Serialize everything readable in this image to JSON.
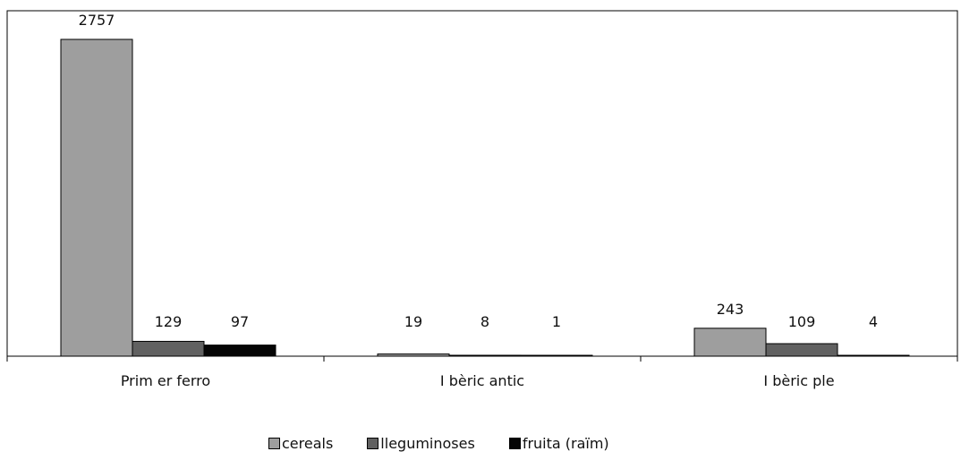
{
  "chart_data": {
    "type": "bar",
    "categories": [
      "Prim er ferro",
      "I bèric antic",
      "I bèric ple"
    ],
    "series": [
      {
        "name": "cereals",
        "values": [
          2757,
          19,
          243
        ],
        "color": "#9e9e9e"
      },
      {
        "name": "lleguminoses",
        "values": [
          129,
          8,
          109
        ],
        "color": "#616161"
      },
      {
        "name": "fruita (raïm)",
        "values": [
          97,
          1,
          4
        ],
        "color": "#050505"
      }
    ],
    "ylim": [
      0,
      2900
    ],
    "grid": false,
    "legend_position": "bottom"
  }
}
